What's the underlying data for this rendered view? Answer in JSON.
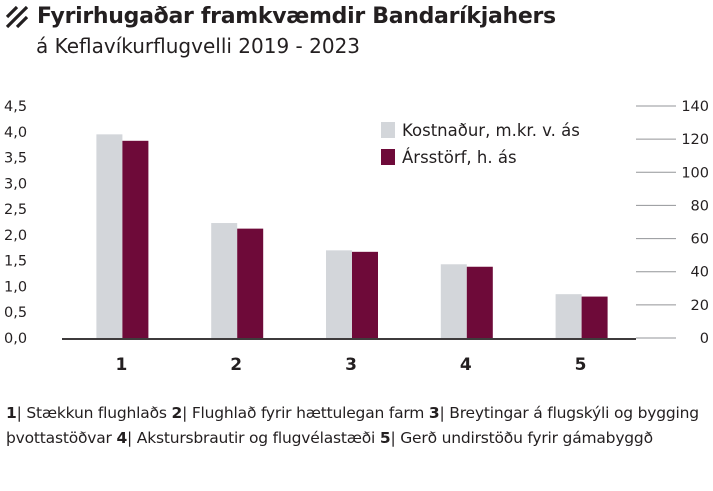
{
  "title": "Fyrirhugaðar framkvæmdir Bandaríkjahers",
  "subtitle": "á Keflavíkurflugvelli 2019 - 2023",
  "chart_data": {
    "type": "bar",
    "categories": [
      "1",
      "2",
      "3",
      "4",
      "5"
    ],
    "series": [
      {
        "name": "Kostnaður, m.kr. v. ás",
        "axis": "left",
        "color": "#d3d6da",
        "values": [
          3.95,
          2.23,
          1.7,
          1.43,
          0.85
        ]
      },
      {
        "name": "Ársstörf, h. ás",
        "axis": "right",
        "color": "#6e0a39",
        "values": [
          119,
          66,
          52,
          43,
          25
        ]
      }
    ],
    "y_left": {
      "min": 0,
      "max": 4.5,
      "ticks": [
        "0,0",
        "0,5",
        "1,0",
        "1,5",
        "2,0",
        "2,5",
        "3,0",
        "3,5",
        "4,0",
        "4,5"
      ]
    },
    "y_right": {
      "min": 0,
      "max": 140,
      "ticks": [
        "0",
        "20",
        "40",
        "60",
        "80",
        "100",
        "120",
        "140"
      ]
    },
    "grid": false,
    "legend": "top-right"
  },
  "footnote": [
    {
      "num": "1",
      "text": "| Stækkun flughlaðs "
    },
    {
      "num": "2",
      "text": "| Flughlað fyrir hættulegan farm "
    },
    {
      "num": "3",
      "text": "| Breytingar á flugskýli og bygging þvottastöðvar "
    },
    {
      "num": "4",
      "text": "| Akstursbrautir og flugvélastæði "
    },
    {
      "num": "5",
      "text": "| Gerð undirstöðu fyrir gámabyggð"
    }
  ]
}
